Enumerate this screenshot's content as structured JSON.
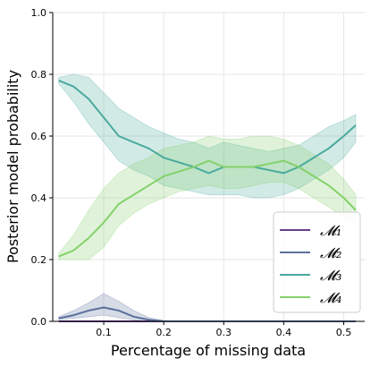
{
  "chart_data": {
    "type": "line",
    "title": "",
    "xlabel": "Percentage of missing data",
    "ylabel": "Posterior model probability",
    "xlim": [
      0.015,
      0.535
    ],
    "ylim": [
      0.0,
      1.0
    ],
    "xticks": [
      0.1,
      0.2,
      0.3,
      0.4,
      0.5
    ],
    "xtick_labels": [
      "0.1",
      "0.2",
      "0.3",
      "0.4",
      "0.5"
    ],
    "yticks": [
      0.0,
      0.2,
      0.4,
      0.6,
      0.8,
      1.0
    ],
    "ytick_labels": [
      "0.0",
      "0.2",
      "0.4",
      "0.6",
      "0.8",
      "1.0"
    ],
    "grid": true,
    "legend_position": "lower-right",
    "x": [
      0.025,
      0.05,
      0.075,
      0.1,
      0.125,
      0.15,
      0.175,
      0.2,
      0.225,
      0.25,
      0.275,
      0.3,
      0.325,
      0.35,
      0.375,
      0.4,
      0.425,
      0.45,
      0.475,
      0.5,
      0.52
    ],
    "series": [
      {
        "name": "𝓜₁",
        "color": "#6a3d8a",
        "values": [
          0.0,
          0.0,
          0.0,
          0.0,
          0.0,
          0.0,
          0.0,
          0.0,
          0.0,
          0.0,
          0.0,
          0.0,
          0.0,
          0.0,
          0.0,
          0.0,
          0.0,
          0.0,
          0.0,
          0.0,
          0.0
        ],
        "band_lower": [
          0.0,
          0.0,
          0.0,
          0.0,
          0.0,
          0.0,
          0.0,
          0.0,
          0.0,
          0.0,
          0.0,
          0.0,
          0.0,
          0.0,
          0.0,
          0.0,
          0.0,
          0.0,
          0.0,
          0.0,
          0.0
        ],
        "band_upper": [
          0.0,
          0.0,
          0.0,
          0.0,
          0.0,
          0.0,
          0.0,
          0.0,
          0.0,
          0.0,
          0.0,
          0.0,
          0.0,
          0.0,
          0.0,
          0.0,
          0.0,
          0.0,
          0.0,
          0.0,
          0.0
        ]
      },
      {
        "name": "𝓜₂",
        "color": "#5b6f9b",
        "values": [
          0.01,
          0.02,
          0.035,
          0.045,
          0.035,
          0.015,
          0.005,
          0.0,
          0.0,
          0.0,
          0.0,
          0.0,
          0.0,
          0.0,
          0.0,
          0.0,
          0.0,
          0.0,
          0.0,
          0.0,
          0.0
        ],
        "band_lower": [
          0.005,
          0.01,
          0.015,
          0.02,
          0.012,
          0.004,
          0.0,
          0.0,
          0.0,
          0.0,
          0.0,
          0.0,
          0.0,
          0.0,
          0.0,
          0.0,
          0.0,
          0.0,
          0.0,
          0.0,
          0.0
        ],
        "band_upper": [
          0.015,
          0.035,
          0.06,
          0.09,
          0.065,
          0.035,
          0.012,
          0.003,
          0.0,
          0.0,
          0.0,
          0.0,
          0.0,
          0.0,
          0.0,
          0.0,
          0.0,
          0.0,
          0.0,
          0.0,
          0.0
        ]
      },
      {
        "name": "𝓜₃",
        "color": "#4aaa9d",
        "values": [
          0.78,
          0.76,
          0.72,
          0.66,
          0.6,
          0.58,
          0.56,
          0.53,
          0.515,
          0.5,
          0.48,
          0.5,
          0.5,
          0.5,
          0.49,
          0.48,
          0.5,
          0.53,
          0.56,
          0.6,
          0.635
        ],
        "band_lower": [
          0.77,
          0.71,
          0.64,
          0.58,
          0.52,
          0.49,
          0.47,
          0.44,
          0.43,
          0.42,
          0.41,
          0.41,
          0.41,
          0.4,
          0.4,
          0.41,
          0.43,
          0.46,
          0.49,
          0.53,
          0.58
        ],
        "band_upper": [
          0.79,
          0.8,
          0.79,
          0.74,
          0.69,
          0.66,
          0.63,
          0.61,
          0.59,
          0.58,
          0.56,
          0.58,
          0.57,
          0.56,
          0.55,
          0.56,
          0.57,
          0.6,
          0.63,
          0.65,
          0.67
        ]
      },
      {
        "name": "𝓜₄",
        "color": "#84d16a",
        "values": [
          0.21,
          0.23,
          0.27,
          0.32,
          0.38,
          0.41,
          0.44,
          0.47,
          0.485,
          0.5,
          0.52,
          0.5,
          0.5,
          0.5,
          0.51,
          0.52,
          0.5,
          0.47,
          0.44,
          0.4,
          0.36
        ],
        "band_lower": [
          0.2,
          0.2,
          0.2,
          0.24,
          0.31,
          0.35,
          0.38,
          0.4,
          0.42,
          0.43,
          0.44,
          0.43,
          0.43,
          0.44,
          0.45,
          0.45,
          0.43,
          0.4,
          0.37,
          0.34,
          0.32
        ],
        "band_upper": [
          0.22,
          0.28,
          0.36,
          0.43,
          0.48,
          0.51,
          0.53,
          0.56,
          0.57,
          0.58,
          0.6,
          0.59,
          0.59,
          0.6,
          0.6,
          0.59,
          0.57,
          0.54,
          0.51,
          0.46,
          0.41
        ]
      }
    ]
  }
}
